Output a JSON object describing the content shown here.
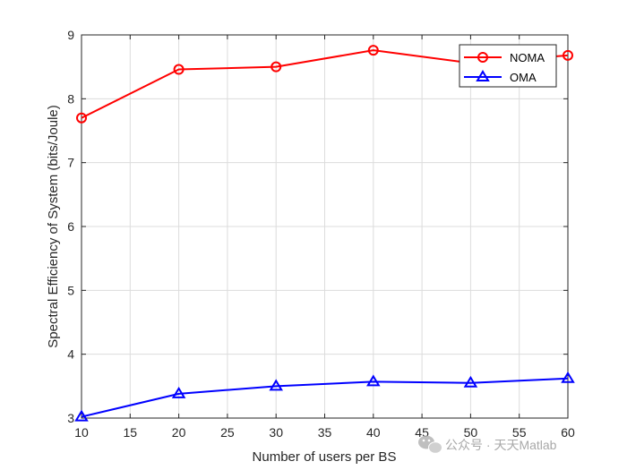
{
  "chart_data": {
    "type": "line",
    "title": "",
    "xlabel": "Number of users per BS",
    "ylabel": "Spectral Efficiency of System (bits/Joule)",
    "xlim": [
      10,
      60
    ],
    "ylim": [
      3,
      9
    ],
    "xticks": [
      "10",
      "15",
      "20",
      "25",
      "30",
      "35",
      "40",
      "45",
      "50",
      "55",
      "60"
    ],
    "yticks": [
      "3",
      "4",
      "5",
      "6",
      "7",
      "8",
      "9"
    ],
    "grid": true,
    "legend_position": "top-right",
    "x": [
      10,
      20,
      30,
      40,
      50,
      60
    ],
    "series": [
      {
        "name": "NOMA",
        "values": [
          7.7,
          8.46,
          8.5,
          8.76,
          8.56,
          8.68
        ],
        "color": "#ff0000",
        "marker": "circle"
      },
      {
        "name": "OMA",
        "values": [
          3.02,
          3.38,
          3.5,
          3.57,
          3.55,
          3.62
        ],
        "color": "#0000ff",
        "marker": "triangle"
      }
    ]
  },
  "watermark": {
    "text": "公众号 · 天天Matlab",
    "icon": "wechat-icon"
  }
}
